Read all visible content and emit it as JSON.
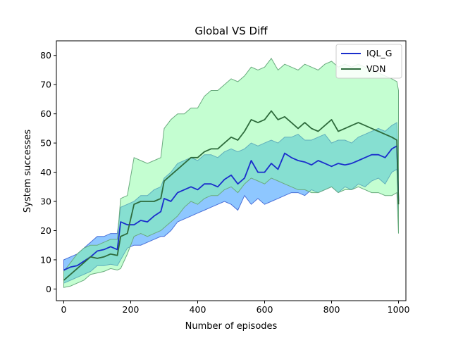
{
  "chart_data": {
    "type": "line",
    "title": "Global VS Diff",
    "xlabel": "Number of episodes",
    "ylabel": "System successes",
    "xlim": [
      -22,
      1022
    ],
    "ylim": [
      -4,
      85
    ],
    "xticks": [
      0,
      200,
      400,
      600,
      800,
      1000
    ],
    "yticks": [
      0,
      10,
      20,
      30,
      40,
      50,
      60,
      70,
      80
    ],
    "grid": false,
    "legend_position": "top-right",
    "series": [
      {
        "name": "IQL_G",
        "line_color": "#1a2ecc",
        "band_fill": "#1e90ff",
        "band_edge": "#4a6fd8",
        "x": [
          0,
          20,
          40,
          60,
          80,
          100,
          120,
          140,
          160,
          170,
          190,
          210,
          230,
          250,
          270,
          290,
          300,
          320,
          340,
          360,
          380,
          400,
          420,
          440,
          460,
          480,
          500,
          520,
          540,
          560,
          580,
          600,
          620,
          640,
          660,
          680,
          700,
          720,
          740,
          760,
          780,
          800,
          820,
          840,
          860,
          880,
          900,
          920,
          940,
          960,
          980,
          995,
          1000
        ],
        "mean": [
          6.5,
          7.5,
          8,
          9.5,
          11,
          13,
          13.5,
          14.5,
          13.5,
          23,
          22,
          22,
          23.5,
          23,
          25,
          26.5,
          31,
          30,
          33,
          34,
          35,
          34,
          36,
          36,
          35,
          37.5,
          39,
          36,
          38,
          44,
          40,
          40,
          43,
          41,
          46.5,
          45,
          44,
          43.5,
          42.5,
          44,
          43,
          42,
          43,
          42.5,
          43,
          44,
          45,
          46,
          46,
          45,
          48,
          49,
          30
        ],
        "lower": [
          2,
          3,
          4,
          5,
          6,
          8,
          8,
          8.5,
          8,
          10,
          14,
          15,
          15,
          16,
          17,
          18,
          18,
          20,
          23,
          24,
          25,
          26,
          27,
          28,
          29,
          30,
          29,
          27,
          32,
          29,
          31,
          29,
          30,
          31,
          32,
          33,
          33,
          32,
          34,
          33,
          34,
          35,
          33,
          35,
          34,
          36,
          35,
          37,
          38,
          36,
          40,
          41,
          25
        ],
        "upper": [
          10,
          11,
          12,
          14,
          16,
          18,
          18,
          19,
          19,
          28,
          29,
          30,
          32,
          32,
          34,
          35,
          38,
          40,
          43,
          44,
          45,
          44,
          46,
          46,
          45,
          47,
          48,
          47,
          48,
          50,
          49,
          50,
          51,
          50,
          52,
          52,
          53,
          51,
          51,
          52,
          53,
          50,
          51,
          51,
          50,
          52,
          53,
          54,
          55,
          54,
          56,
          57,
          37
        ]
      },
      {
        "name": "VDN",
        "line_color": "#2e6b3c",
        "band_fill": "#7cfc9a",
        "band_edge": "#6aab7e",
        "x": [
          0,
          20,
          40,
          60,
          80,
          100,
          120,
          140,
          160,
          170,
          190,
          210,
          230,
          250,
          270,
          290,
          300,
          320,
          340,
          360,
          380,
          400,
          420,
          440,
          460,
          480,
          500,
          520,
          540,
          560,
          580,
          600,
          620,
          640,
          660,
          680,
          700,
          720,
          740,
          760,
          780,
          800,
          820,
          840,
          860,
          880,
          900,
          920,
          940,
          960,
          980,
          995,
          1000
        ],
        "mean": [
          3,
          5,
          7,
          9,
          11,
          10.5,
          11,
          12,
          11.5,
          18,
          19,
          29,
          30,
          30,
          30,
          31,
          37,
          39,
          41,
          43,
          45,
          45,
          47,
          48,
          48,
          50,
          52,
          51,
          54,
          58,
          57,
          58,
          61,
          58,
          59,
          57,
          55,
          57,
          55,
          54,
          56,
          58,
          54,
          55,
          56,
          57,
          56,
          55,
          54,
          53,
          52,
          51,
          29
        ],
        "lower": [
          0.5,
          1,
          2,
          3,
          5,
          5.5,
          6,
          7,
          6.5,
          7,
          12,
          18,
          19,
          18,
          19,
          20,
          21,
          23,
          25,
          28,
          30,
          29,
          31,
          32,
          32,
          34,
          35,
          33,
          36,
          38,
          37,
          36,
          38,
          37,
          36,
          35,
          34,
          34,
          33,
          33,
          34,
          35,
          33,
          34,
          34,
          35,
          34,
          33,
          33,
          32,
          32,
          33,
          19
        ],
        "upper": [
          6,
          9,
          12,
          14,
          15,
          15,
          16,
          17,
          17,
          31,
          32,
          45,
          44,
          43,
          44,
          45,
          55,
          58,
          60,
          60,
          62,
          62,
          66,
          68,
          68,
          70,
          72,
          71,
          73,
          76,
          75,
          76,
          79,
          75,
          77,
          76,
          75,
          77,
          76,
          75,
          77,
          78,
          76,
          77,
          76,
          77,
          76,
          75,
          74,
          73,
          72,
          71,
          68
        ]
      }
    ]
  }
}
